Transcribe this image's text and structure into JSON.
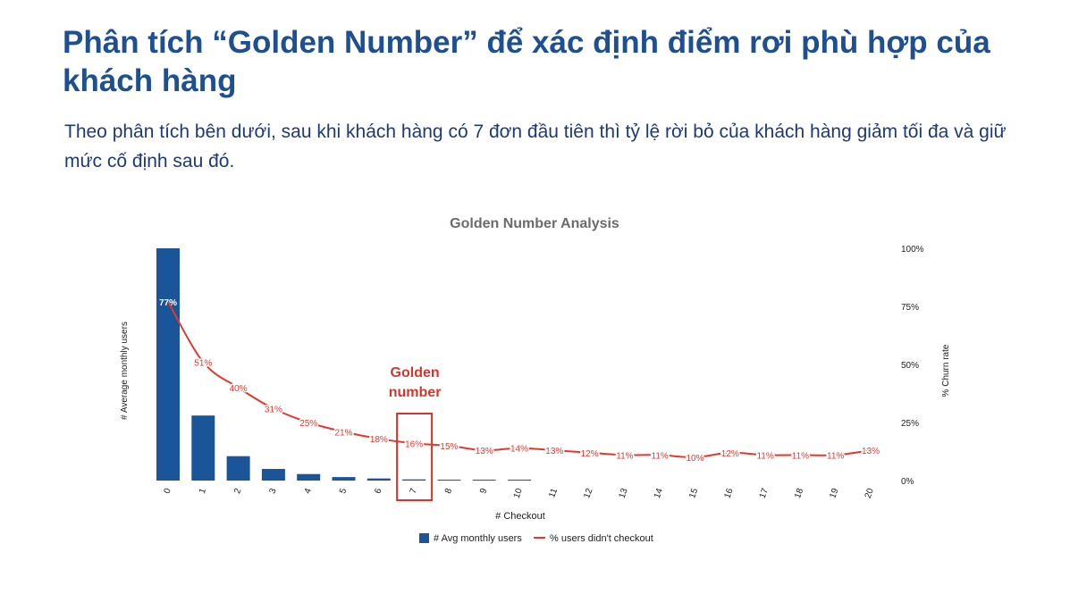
{
  "page": {
    "title": "Phân tích “Golden Number” để xác định điểm rơi phù hợp của khách hàng",
    "subtitle": "Theo phân tích bên dưới, sau khi khách hàng có 7 đơn đầu tiên thì tỷ lệ rời bỏ của khách hàng giảm tối đa và giữ mức cố định sau đó."
  },
  "chart_data": {
    "type": "bar",
    "title": "Golden Number Analysis",
    "xlabel": "# Checkout",
    "ylabel": "# Average monthly users",
    "y2label": "% Churn rate",
    "y2ticks": [
      "100%",
      "75%",
      "50%",
      "25%",
      "0%"
    ],
    "y2lim": [
      0,
      100
    ],
    "categories": [
      "0",
      "1",
      "2",
      "3",
      "4",
      "5",
      "6",
      "7",
      "8",
      "9",
      "10",
      "11",
      "12",
      "13",
      "14",
      "15",
      "16",
      "17",
      "18",
      "19",
      "20"
    ],
    "series": [
      {
        "name": "# Avg monthly users",
        "type": "bar",
        "axis": "left",
        "color": "#1a5599",
        "values": [
          100,
          28,
          10.5,
          5,
          2.8,
          1.5,
          0.9,
          0.5,
          0.3,
          0.2,
          0.15,
          0,
          0,
          0,
          0,
          0,
          0,
          0,
          0,
          0,
          0
        ]
      },
      {
        "name": "% users didn't checkout",
        "type": "line",
        "axis": "right",
        "color": "#e03a2f",
        "values": [
          77,
          51,
          40,
          31,
          25,
          21,
          18,
          16,
          15,
          13,
          14,
          13,
          12,
          11,
          11,
          10,
          12,
          11,
          11,
          11,
          13
        ],
        "labels": [
          "77%",
          "51%",
          "40%",
          "31%",
          "25%",
          "21%",
          "18%",
          "16%",
          "15%",
          "13%",
          "14%",
          "13%",
          "12%",
          "11%",
          "11%",
          "10%",
          "12%",
          "11%",
          "11%",
          "11%",
          "13%"
        ]
      }
    ],
    "annotation": {
      "text_line1": "Golden",
      "text_line2": "number",
      "category": "7",
      "color": "#d9342b"
    },
    "grid": false,
    "legend_position": "bottom"
  }
}
